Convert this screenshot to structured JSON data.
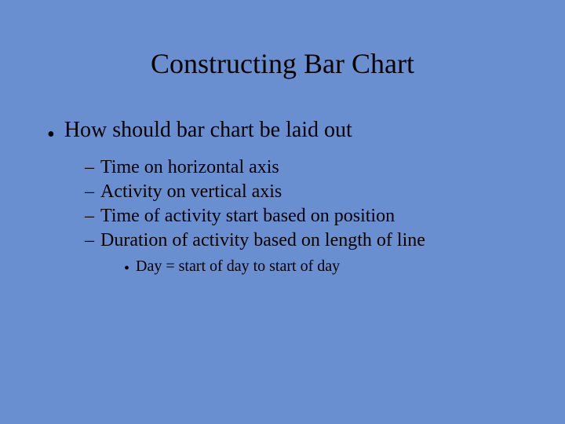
{
  "slide": {
    "background_color": "#6a8fd1",
    "text_color": "#000000",
    "title": {
      "text": "Constructing Bar Chart",
      "fontsize": 36
    },
    "level1": {
      "marker": "•",
      "fontsize": 28,
      "items": [
        "How should bar chart be laid out"
      ]
    },
    "level2": {
      "marker": "–",
      "fontsize": 24,
      "items": [
        "Time on horizontal axis",
        "Activity on vertical axis",
        "Time of activity start based on position",
        "Duration of activity based on length of line"
      ]
    },
    "level3": {
      "marker": "•",
      "fontsize": 20,
      "items": [
        "Day = start of day to start of day"
      ]
    }
  }
}
